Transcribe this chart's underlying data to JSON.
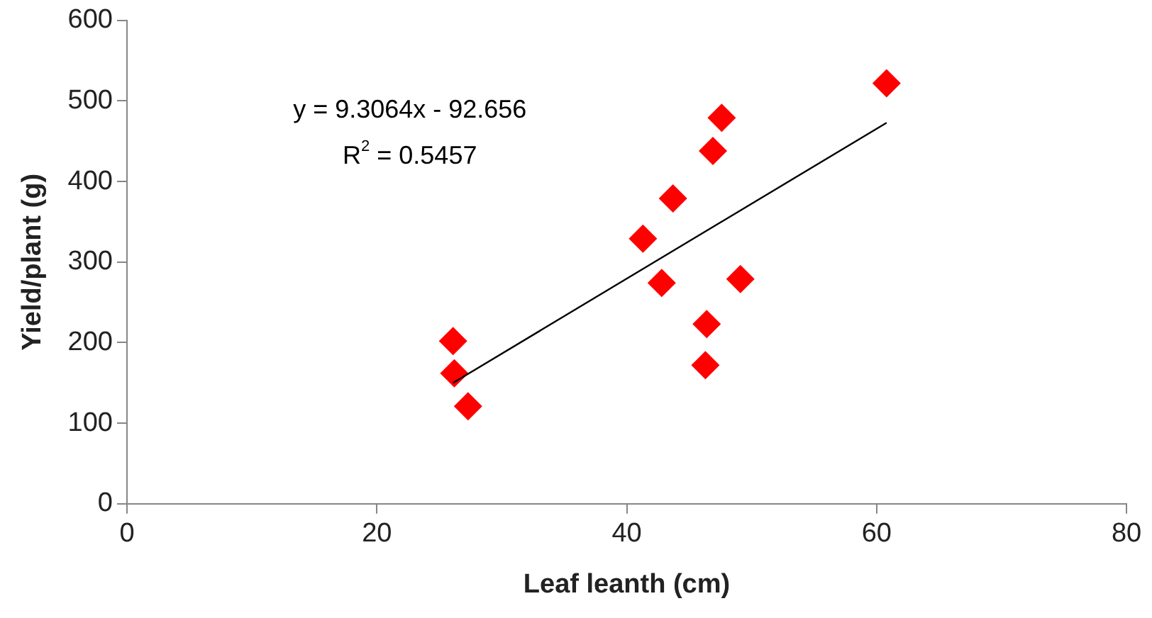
{
  "chart_data": {
    "type": "scatter",
    "xlabel": "Leaf leanth (cm)",
    "ylabel": "Yield/plant (g)",
    "xlim": [
      0,
      80
    ],
    "xticks": [
      0,
      20,
      40,
      60,
      80
    ],
    "ylim": [
      0,
      600
    ],
    "yticks": [
      0,
      100,
      200,
      300,
      400,
      500,
      600
    ],
    "series": [
      {
        "type": "scatter",
        "marker": "diamond",
        "color": "#ff0000",
        "x": [
          26.1,
          26.2,
          27.3,
          41.3,
          43.7,
          42.8,
          46.9,
          47.6,
          46.4,
          46.3,
          49.1,
          60.8
        ],
        "values": [
          202,
          162,
          121,
          329,
          379,
          274,
          438,
          479,
          223,
          172,
          279,
          522
        ]
      },
      {
        "type": "line",
        "color": "#000000",
        "x": [
          26.1,
          60.8
        ],
        "values": [
          150,
          473
        ]
      }
    ],
    "annotations": [
      "y = 9.3064x - 92.656",
      "R$^{2}$ = 0.5457"
    ]
  }
}
